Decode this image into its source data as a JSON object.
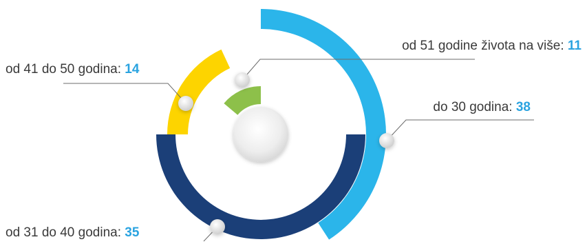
{
  "colors": {
    "label_text": "#3a3a3a",
    "value_text": "#2aa3e0",
    "leader_line": "#6b6b6b"
  },
  "chart_data": {
    "type": "pie",
    "title": "",
    "categories": [
      "od 51 godine života na više",
      "do 30 godina",
      "od 41 do 50 godina",
      "od 31 do 40 godina"
    ],
    "values": [
      11,
      38,
      14,
      35
    ],
    "colors": [
      "#8dc04a",
      "#2bb5ea",
      "#fdd400",
      "#1b3f78"
    ],
    "labels": [
      {
        "text": "od 51 godine života na više: ",
        "value": "11"
      },
      {
        "text": "do 30 godina: ",
        "value": "38"
      },
      {
        "text": "od 41 do 50 godina: ",
        "value": "14"
      },
      {
        "text": "od 31 do 40 godina: ",
        "value": "35"
      }
    ]
  }
}
